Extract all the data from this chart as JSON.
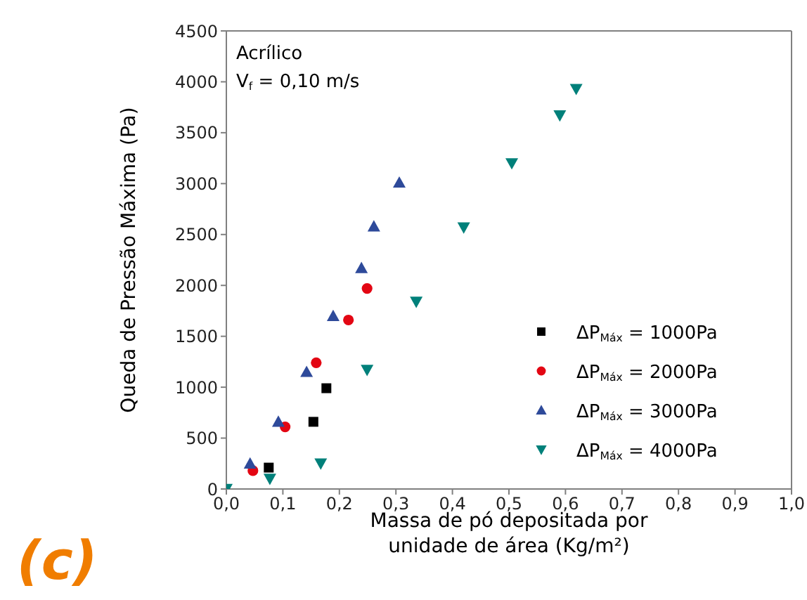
{
  "chart_data": {
    "type": "scatter",
    "xlabel": "Massa de pó depositada por unidade de área (Kg/m²)",
    "ylabel": "Queda de Pressão Máxima (Pa)",
    "annotations": [
      "Acrílico",
      "V$_{f}$ = 0,10 m/s",
      "(c)"
    ],
    "xlim": [
      0,
      1
    ],
    "xticks": [
      {
        "value": 0,
        "label": "0,0"
      },
      {
        "value": 0.1,
        "label": "0,1"
      },
      {
        "value": 0.2,
        "label": "0,2"
      },
      {
        "value": 0.3,
        "label": "0,3"
      },
      {
        "value": 0.4,
        "label": "0,4"
      },
      {
        "value": 0.5,
        "label": "0,5"
      },
      {
        "value": 0.6,
        "label": "0,6"
      },
      {
        "value": 0.7,
        "label": "0,7"
      },
      {
        "value": 0.8,
        "label": "0,8"
      },
      {
        "value": 0.9,
        "label": "0,9"
      },
      {
        "value": 1,
        "label": "1,0"
      }
    ],
    "ylim": [
      0,
      4500
    ],
    "yticks": [
      0,
      500,
      1000,
      1500,
      2000,
      2500,
      3000,
      3500,
      4000,
      4500
    ],
    "grid": false,
    "legend": "bottom right",
    "series": [
      {
        "name": "ΔP$_{Máx}$ = 1000Pa",
        "color": "#000000",
        "marker": "square",
        "x": [
          0.075,
          0.154,
          0.177
        ],
        "values": [
          210,
          660,
          990
        ]
      },
      {
        "name": "ΔP$_{Máx}$ = 2000Pa",
        "color": "#e30613",
        "marker": "circle",
        "x": [
          0.047,
          0.104,
          0.159,
          0.216,
          0.249
        ],
        "values": [
          180,
          610,
          1240,
          1660,
          1970
        ]
      },
      {
        "name": "ΔP$_{Máx}$ = 3000Pa",
        "color": "#2e4a9a",
        "marker": "triangle",
        "x": [
          0.042,
          0.092,
          0.142,
          0.189,
          0.239,
          0.261,
          0.306
        ],
        "values": [
          250,
          660,
          1150,
          1700,
          2170,
          2580,
          3010
        ]
      },
      {
        "name": "ΔP$_{Máx}$ = 4000Pa",
        "color": "#00807a",
        "marker": "triangle-down",
        "x": [
          0,
          0.077,
          0.167,
          0.249,
          0.336,
          0.42,
          0.505,
          0.59,
          0.619
        ],
        "values": [
          0,
          100,
          250,
          1170,
          1840,
          2570,
          3200,
          3670,
          3930
        ]
      }
    ]
  }
}
